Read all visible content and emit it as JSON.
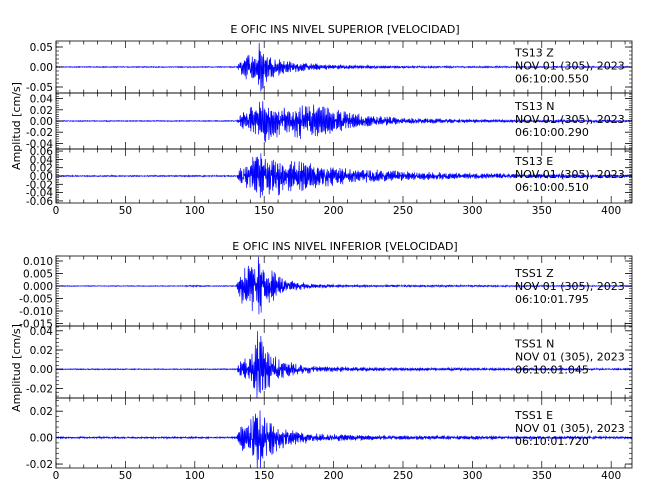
{
  "chart_data": [
    {
      "type": "line",
      "title": "E OFIC INS NIVEL SUPERIOR [VELOCIDAD]",
      "ylabel": "Amplitud [cm/s]",
      "xlabel": "",
      "xlim": [
        0,
        415
      ],
      "x_ticks": [
        0,
        50,
        100,
        150,
        200,
        250,
        300,
        350,
        400
      ],
      "x_tick_labels": [
        "0",
        "50",
        "100",
        "150",
        "200",
        "250",
        "300",
        "350",
        "400"
      ],
      "traces": [
        {
          "station": "TS13",
          "component": "Z",
          "info": [
            "TS13   Z",
            "NOV 01 (305), 2023",
            "06:10:00.550"
          ],
          "ylim": [
            -0.065,
            0.065
          ],
          "y_ticks": [
            -0.05,
            0.0,
            0.05
          ],
          "y_tick_labels": [
            "-0.05",
            "0.00",
            "0.05"
          ],
          "envelope": [
            [
              0,
              0.0012
            ],
            [
              130,
              0.0012
            ],
            [
              134,
              0.02
            ],
            [
              138,
              0.03
            ],
            [
              143,
              0.034
            ],
            [
              147,
              0.065
            ],
            [
              150,
              0.04
            ],
            [
              155,
              0.025
            ],
            [
              162,
              0.018
            ],
            [
              170,
              0.013
            ],
            [
              180,
              0.009
            ],
            [
              195,
              0.006
            ],
            [
              215,
              0.004
            ],
            [
              250,
              0.0025
            ],
            [
              300,
              0.0018
            ],
            [
              415,
              0.0014
            ]
          ]
        },
        {
          "station": "TS13",
          "component": "N",
          "info": [
            "TS13   N",
            "NOV 01 (305), 2023",
            "06:10:00.290"
          ],
          "ylim": [
            -0.05,
            0.05
          ],
          "y_ticks": [
            -0.04,
            -0.02,
            0.0,
            0.02,
            0.04
          ],
          "y_tick_labels": [
            "-0.04",
            "-0.02",
            "0.00",
            "0.02",
            "0.04"
          ],
          "envelope": [
            [
              0,
              0.0008
            ],
            [
              130,
              0.0008
            ],
            [
              134,
              0.015
            ],
            [
              140,
              0.025
            ],
            [
              146,
              0.034
            ],
            [
              149,
              0.04
            ],
            [
              155,
              0.028
            ],
            [
              165,
              0.025
            ],
            [
              172,
              0.03
            ],
            [
              180,
              0.03
            ],
            [
              190,
              0.026
            ],
            [
              200,
              0.02
            ],
            [
              215,
              0.013
            ],
            [
              230,
              0.009
            ],
            [
              250,
              0.005
            ],
            [
              300,
              0.0025
            ],
            [
              415,
              0.0015
            ]
          ]
        },
        {
          "station": "TS13",
          "component": "E",
          "info": [
            "TS13   E",
            "NOV 01 (305), 2023",
            "06:10:00.510"
          ],
          "ylim": [
            -0.065,
            0.065
          ],
          "y_ticks": [
            -0.06,
            -0.04,
            -0.02,
            0.0,
            0.02,
            0.04,
            0.06
          ],
          "y_tick_labels": [
            "-0.06",
            "-0.04",
            "-0.02",
            "0.00",
            "0.02",
            "0.04",
            "0.06"
          ],
          "envelope": [
            [
              0,
              0.0015
            ],
            [
              130,
              0.0015
            ],
            [
              134,
              0.025
            ],
            [
              140,
              0.04
            ],
            [
              146,
              0.05
            ],
            [
              149,
              0.06
            ],
            [
              155,
              0.045
            ],
            [
              165,
              0.04
            ],
            [
              175,
              0.035
            ],
            [
              190,
              0.025
            ],
            [
              210,
              0.017
            ],
            [
              240,
              0.012
            ],
            [
              280,
              0.008
            ],
            [
              330,
              0.005
            ],
            [
              415,
              0.003
            ]
          ]
        }
      ]
    },
    {
      "type": "line",
      "title": "E OFIC INS NIVEL INFERIOR [VELOCIDAD]",
      "ylabel": "Amplitud [cm/s]",
      "xlabel": "",
      "xlim": [
        0,
        415
      ],
      "x_ticks": [
        0,
        50,
        100,
        150,
        200,
        250,
        300,
        350,
        400
      ],
      "x_tick_labels": [
        "0",
        "50",
        "100",
        "150",
        "200",
        "250",
        "300",
        "350",
        "400"
      ],
      "traces": [
        {
          "station": "TSS1",
          "component": "Z",
          "info": [
            "TSS1   Z",
            "NOV 01 (305), 2023",
            "06:10:01.795"
          ],
          "ylim": [
            -0.016,
            0.012
          ],
          "y_ticks": [
            -0.015,
            -0.01,
            -0.005,
            0.0,
            0.005,
            0.01
          ],
          "y_tick_labels": [
            "-0.015",
            "-0.010",
            "-0.005",
            "0.000",
            "0.005",
            "0.010"
          ],
          "envelope": [
            [
              0,
              0.00015
            ],
            [
              90,
              0.00015
            ],
            [
              100,
              0.0003
            ],
            [
              110,
              0.00015
            ],
            [
              130,
              0.0002
            ],
            [
              133,
              0.006
            ],
            [
              140,
              0.009
            ],
            [
              147,
              0.012
            ],
            [
              150,
              0.008
            ],
            [
              158,
              0.005
            ],
            [
              170,
              0.002
            ],
            [
              185,
              0.0008
            ],
            [
              210,
              0.0004
            ],
            [
              415,
              0.0002
            ]
          ]
        },
        {
          "station": "TSS1",
          "component": "N",
          "info": [
            "TSS1   N",
            "NOV 01 (305), 2023",
            "06:10:01.045"
          ],
          "ylim": [
            -0.03,
            0.045
          ],
          "y_ticks": [
            -0.02,
            0.0,
            0.02,
            0.04
          ],
          "y_tick_labels": [
            "-0.02",
            "0.00",
            "0.02",
            "0.04"
          ],
          "envelope": [
            [
              0,
              0.0005
            ],
            [
              130,
              0.0005
            ],
            [
              134,
              0.01
            ],
            [
              140,
              0.012
            ],
            [
              147,
              0.045
            ],
            [
              150,
              0.025
            ],
            [
              158,
              0.012
            ],
            [
              170,
              0.006
            ],
            [
              190,
              0.003
            ],
            [
              230,
              0.0015
            ],
            [
              415,
              0.0008
            ]
          ]
        },
        {
          "station": "TSS1",
          "component": "E",
          "info": [
            "TSS1   E",
            "NOV 01 (305), 2023",
            "06:10:01.720"
          ],
          "ylim": [
            -0.023,
            0.03
          ],
          "y_ticks": [
            -0.02,
            0.0,
            0.02
          ],
          "y_tick_labels": [
            "-0.02",
            "0.00",
            "0.02"
          ],
          "envelope": [
            [
              0,
              0.0006
            ],
            [
              130,
              0.0006
            ],
            [
              134,
              0.01
            ],
            [
              140,
              0.013
            ],
            [
              147,
              0.026
            ],
            [
              150,
              0.018
            ],
            [
              158,
              0.01
            ],
            [
              170,
              0.005
            ],
            [
              190,
              0.003
            ],
            [
              230,
              0.0015
            ],
            [
              415,
              0.0008
            ]
          ]
        }
      ]
    }
  ],
  "colors": {
    "trace": "#0000ff",
    "axes": "#000000",
    "background": "#ffffff"
  }
}
